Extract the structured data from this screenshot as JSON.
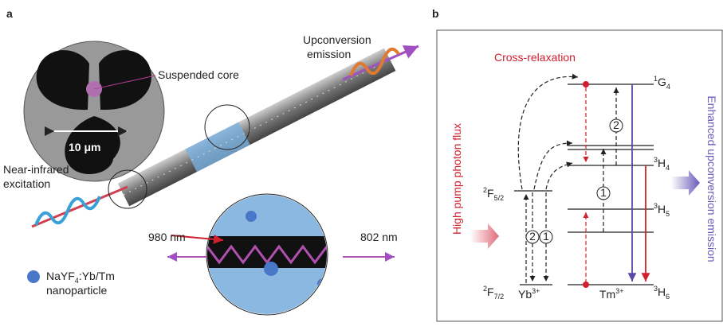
{
  "panel_a": {
    "label": "a",
    "suspended_core": "Suspended core",
    "scale_bar": "10 μm",
    "upconversion": [
      "Upconversion",
      "emission"
    ],
    "excitation": [
      "Near-infrared",
      "excitation"
    ],
    "wavelength_in": "980 nm",
    "wavelength_out": "802 nm",
    "nanoparticle": {
      "formula": [
        "NaYF",
        "4",
        ":Yb/Tm"
      ],
      "line2": "nanoparticle"
    }
  },
  "panel_b": {
    "label": "b",
    "cross_relaxation": "Cross-relaxation",
    "pump": "High pump photon flux",
    "emission": "Enhanced upconversion emission",
    "levels": {
      "G4": {
        "sup": "1",
        "main": "G",
        "sub": "4"
      },
      "H4": {
        "sup": "3",
        "main": "H",
        "sub": "4"
      },
      "H5": {
        "sup": "3",
        "main": "H",
        "sub": "5"
      },
      "H6": {
        "sup": "3",
        "main": "H",
        "sub": "6"
      },
      "F52": {
        "sup": "2",
        "main": "F",
        "sub": "5/2"
      },
      "F72": {
        "sup": "2",
        "main": "F",
        "sub": "7/2"
      }
    },
    "ions": {
      "yb": {
        "main": "Yb",
        "sup": "3+"
      },
      "tm": {
        "main": "Tm",
        "sup": "3+"
      }
    },
    "steps": [
      "1",
      "2"
    ]
  }
}
